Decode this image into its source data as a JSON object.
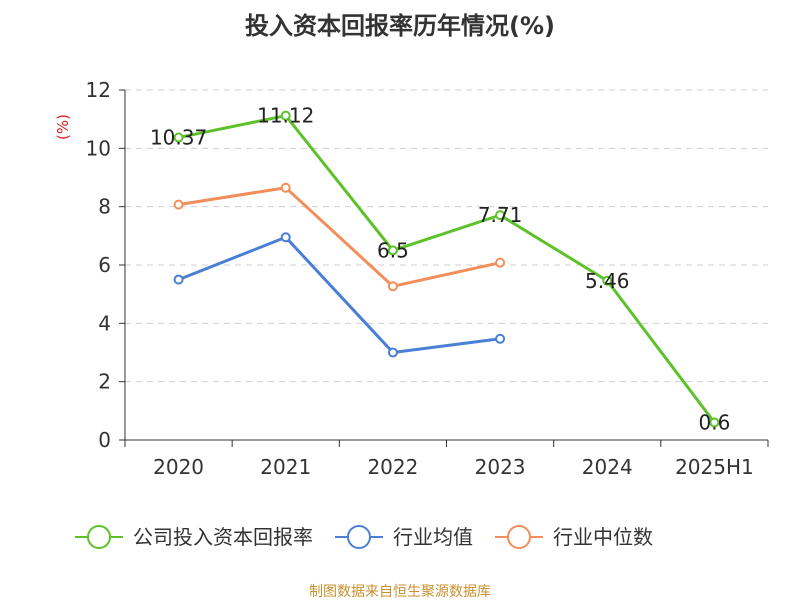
{
  "chart_data": {
    "type": "line",
    "title": "投入资本回报率历年情况(%)",
    "unit_label": "(%)",
    "categories": [
      "2020",
      "2021",
      "2022",
      "2023",
      "2024",
      "2025H1"
    ],
    "ylim": [
      0,
      12
    ],
    "yticks": [
      "0",
      "2",
      "4",
      "6",
      "8",
      "10",
      "12"
    ],
    "grid": true,
    "legend_position": "bottom",
    "series": [
      {
        "name": "公司投入资本回报率",
        "color": "#5dc22a",
        "values": [
          10.37,
          11.12,
          6.5,
          7.71,
          5.46,
          0.6
        ],
        "labels": [
          "10.37",
          "11.12",
          "6.5",
          "7.71",
          "5.46",
          "0.6"
        ]
      },
      {
        "name": "行业均值",
        "color": "#4a7fd6",
        "values": [
          5.5,
          6.95,
          3.0,
          3.47,
          null,
          null
        ]
      },
      {
        "name": "行业中位数",
        "color": "#f28e5a",
        "values": [
          8.07,
          8.65,
          5.27,
          6.08,
          null,
          null
        ]
      }
    ],
    "source": "制图数据来自恒生聚源数据库"
  }
}
